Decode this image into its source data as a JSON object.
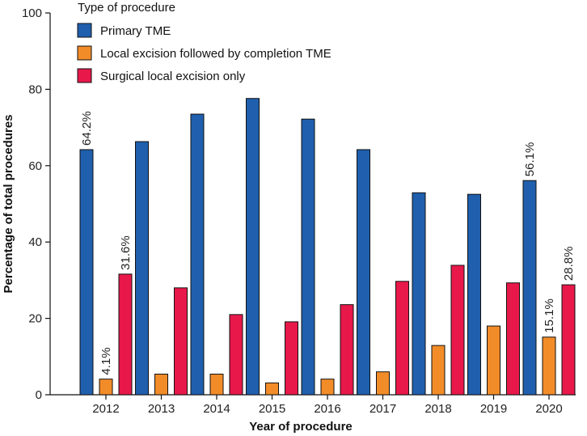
{
  "chart_data": {
    "type": "bar",
    "title": "",
    "xlabel": "Year of procedure",
    "ylabel": "Percentage of total procedures",
    "ylim": [
      0,
      100
    ],
    "yticks": [
      0,
      20,
      40,
      60,
      80,
      100
    ],
    "categories": [
      "2012",
      "2013",
      "2014",
      "2015",
      "2016",
      "2017",
      "2018",
      "2019",
      "2020"
    ],
    "legend_title": "Type of procedure",
    "legend_position": "top-left",
    "grid": false,
    "series": [
      {
        "name": "Primary TME",
        "color": "#1f5fad",
        "values": [
          64.2,
          66.3,
          73.5,
          77.6,
          72.2,
          64.2,
          52.9,
          52.5,
          56.1
        ]
      },
      {
        "name": "Local excision followed by completion TME",
        "color": "#f28c28",
        "values": [
          4.1,
          5.4,
          5.4,
          3.1,
          4.1,
          6.0,
          12.9,
          18.0,
          15.1
        ]
      },
      {
        "name": "Surgical local excision only",
        "color": "#e8184a",
        "values": [
          31.6,
          28.0,
          21.0,
          19.1,
          23.6,
          29.7,
          33.9,
          29.3,
          28.8
        ]
      }
    ],
    "data_labels": [
      {
        "series": 0,
        "index": 0,
        "text": "64.2%"
      },
      {
        "series": 1,
        "index": 0,
        "text": "4.1%"
      },
      {
        "series": 2,
        "index": 0,
        "text": "31.6%"
      },
      {
        "series": 0,
        "index": 8,
        "text": "56.1%"
      },
      {
        "series": 1,
        "index": 8,
        "text": "15.1%"
      },
      {
        "series": 2,
        "index": 8,
        "text": "28.8%"
      }
    ]
  }
}
